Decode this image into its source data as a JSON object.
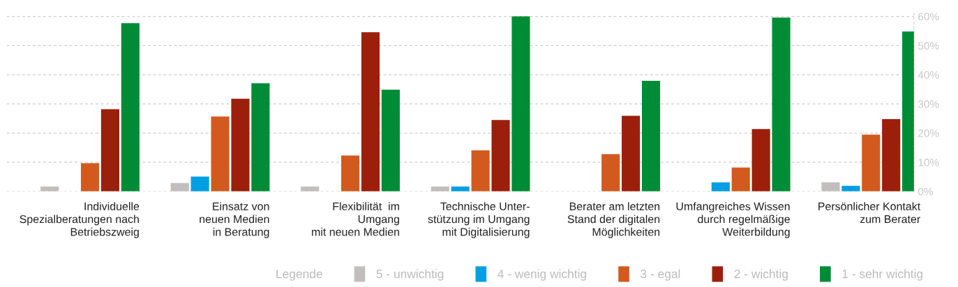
{
  "chart_data": {
    "type": "bar",
    "categories": [
      "Individuelle\nSpezialberatungen nach\nBetriebszweig",
      "Einsatz von\nneuen Medien\nin Beratung",
      "Flexibilität  im\nUmgang\nmit neuen Medien",
      "Technische Unter-\nstützung im Umgang\nmit Digitalisierung",
      "Berater am letzten\nStand der digitalen\nMöglichkeiten",
      "Umfangreiches Wissen\ndurch regelmäßige\nWeiterbildung",
      "Persönlicher Kontakt\nzum Berater"
    ],
    "series": [
      {
        "name": "5 - unwichtig",
        "color": "#c0bfbd",
        "values": [
          1.7,
          2.9,
          1.7,
          1.7,
          0,
          0,
          3.1
        ]
      },
      {
        "name": "4 - wenig wichtig",
        "color": "#009fe3",
        "values": [
          0,
          5.1,
          0,
          1.7,
          0,
          3.1,
          1.9
        ]
      },
      {
        "name": "3 - egal",
        "color": "#d35a1f",
        "values": [
          9.7,
          25.7,
          12.3,
          14.1,
          12.8,
          8.2,
          19.5
        ]
      },
      {
        "name": "2 - wichtig",
        "color": "#9c1f0c",
        "values": [
          28.2,
          31.8,
          54.6,
          24.5,
          25.9,
          21.4,
          24.8
        ]
      },
      {
        "name": "1 - sehr wichtig",
        "color": "#008c36",
        "values": [
          57.7,
          37.1,
          34.9,
          60,
          37.9,
          59.6,
          54.8
        ]
      }
    ],
    "legend_title": "Legende",
    "legend": "bottom",
    "grid": "y",
    "ylim": [
      0,
      61
    ],
    "yticks": [
      {
        "value": 0,
        "label": "0%"
      },
      {
        "value": 10,
        "label": "10%"
      },
      {
        "value": 20,
        "label": "20%"
      },
      {
        "value": 30,
        "label": "30%"
      },
      {
        "value": 40,
        "label": "40%"
      },
      {
        "value": 50,
        "label": "50%"
      },
      {
        "value": 60,
        "label": "60%"
      }
    ]
  }
}
